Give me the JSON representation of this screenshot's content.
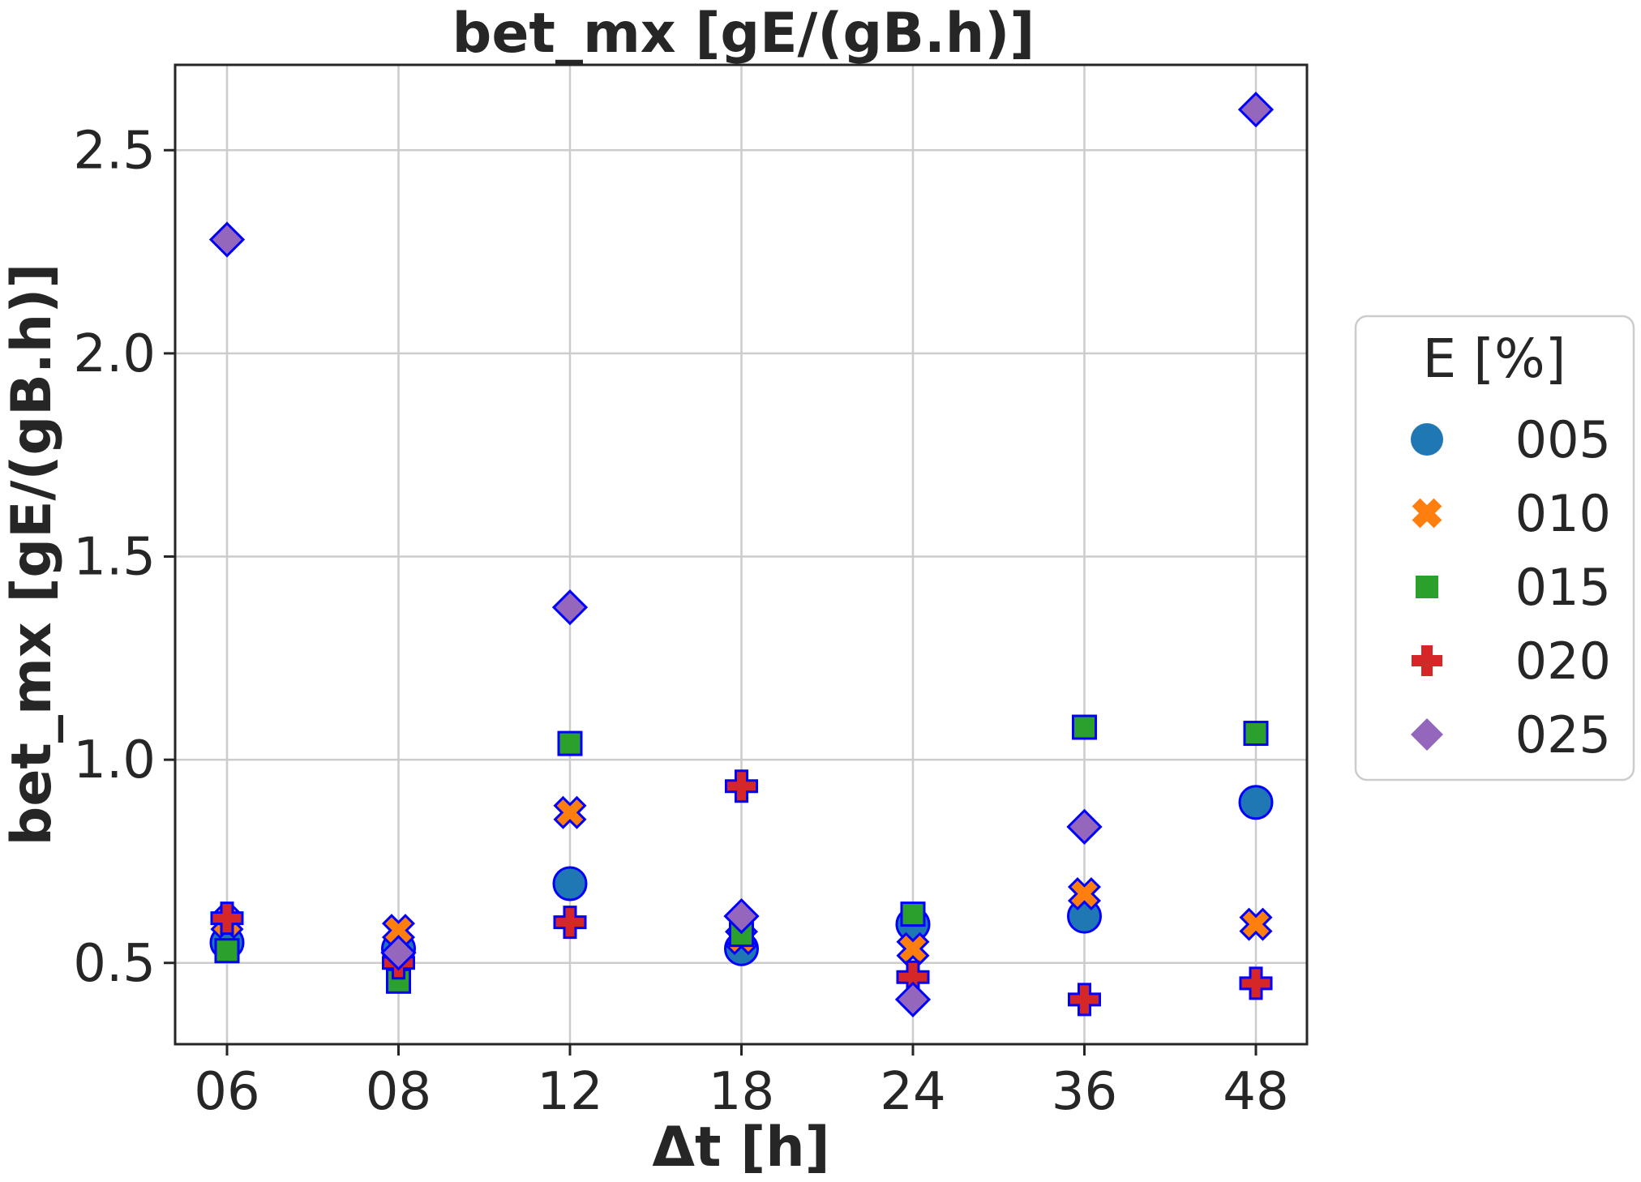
{
  "chart_data": {
    "type": "scatter",
    "title": "bet_mx [gE/(gB.h)]",
    "xlabel": "Δt [h]",
    "ylabel": "bet_mx [gE/(gB.h)]",
    "categories": [
      "06",
      "08",
      "12",
      "18",
      "24",
      "36",
      "48"
    ],
    "ylim": [
      0.3,
      2.71
    ],
    "yticks": [
      0.5,
      1.0,
      1.5,
      2.0,
      2.5
    ],
    "ytick_labels": [
      "0.5",
      "1.0",
      "1.5",
      "2.0",
      "2.5"
    ],
    "grid": true,
    "legend": {
      "title": "E [%]",
      "placement": "right"
    },
    "series": [
      {
        "name": "005",
        "marker": "circle",
        "color": "#1f77b4",
        "values": [
          0.55,
          0.535,
          0.695,
          0.535,
          0.595,
          0.615,
          0.895
        ]
      },
      {
        "name": "010",
        "marker": "x",
        "color": "#ff7f0e",
        "values": [
          0.6,
          0.58,
          0.87,
          0.56,
          0.535,
          0.67,
          0.595
        ]
      },
      {
        "name": "015",
        "marker": "square",
        "color": "#2ca02c",
        "values": [
          0.53,
          0.455,
          1.04,
          0.57,
          0.62,
          1.08,
          1.065
        ]
      },
      {
        "name": "020",
        "marker": "plus",
        "color": "#d62728",
        "values": [
          0.61,
          0.5,
          0.6,
          0.935,
          0.465,
          0.41,
          0.45
        ]
      },
      {
        "name": "025",
        "marker": "diamond",
        "color": "#9467bd",
        "values": [
          2.28,
          0.525,
          1.375,
          0.615,
          0.41,
          0.835,
          2.6
        ]
      }
    ]
  }
}
